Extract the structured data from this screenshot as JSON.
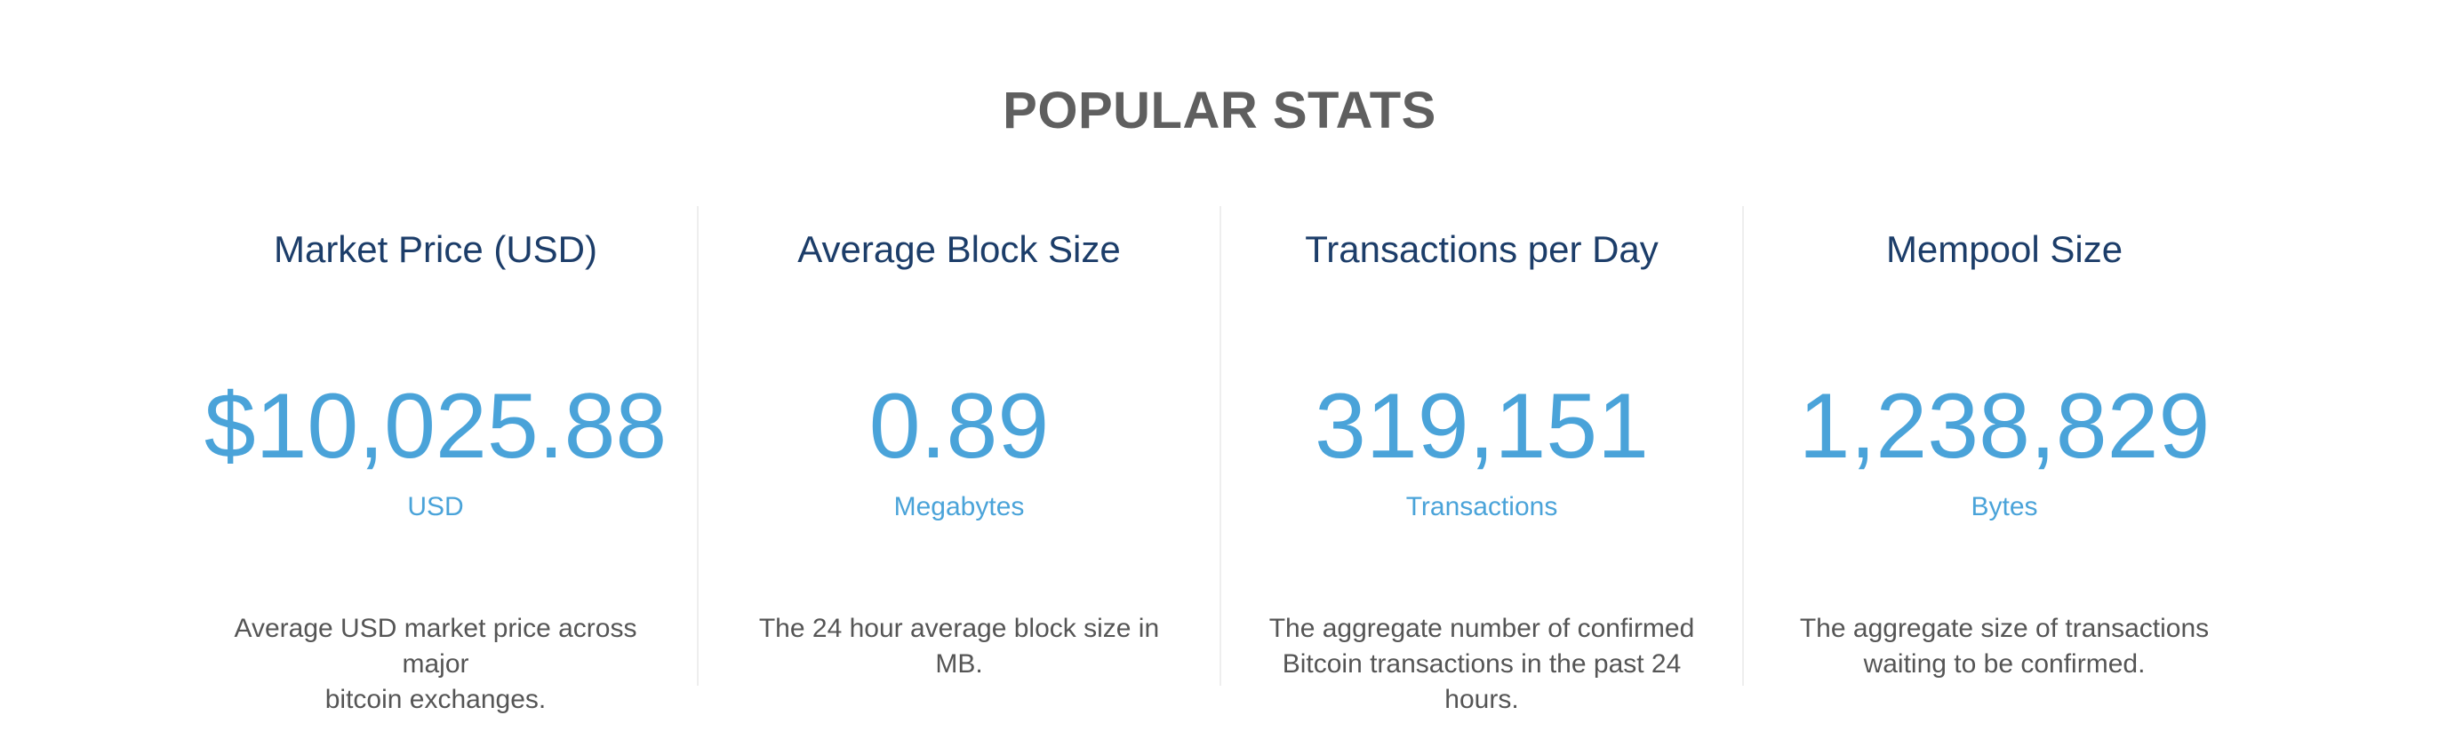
{
  "section": {
    "title": "POPULAR STATS"
  },
  "colors": {
    "title": "#5f5f5f",
    "stat_title": "#1c3d69",
    "accent": "#4aa3d9",
    "description": "#555555",
    "divider": "#eeeeee"
  },
  "stats": [
    {
      "title": "Market Price (USD)",
      "value": "$10,025.88",
      "unit": "USD",
      "description_lines": [
        "Average USD market price across major",
        "bitcoin exchanges."
      ]
    },
    {
      "title": "Average Block Size",
      "value": "0.89",
      "unit": "Megabytes",
      "description_lines": [
        "The 24 hour average block size in MB."
      ]
    },
    {
      "title": "Transactions per Day",
      "value": "319,151",
      "unit": "Transactions",
      "description_lines": [
        "The aggregate number of confirmed",
        "Bitcoin transactions in the past 24 hours."
      ]
    },
    {
      "title": "Mempool Size",
      "value": "1,238,829",
      "unit": "Bytes",
      "description_lines": [
        "The aggregate size of transactions",
        "waiting to be confirmed."
      ]
    }
  ]
}
